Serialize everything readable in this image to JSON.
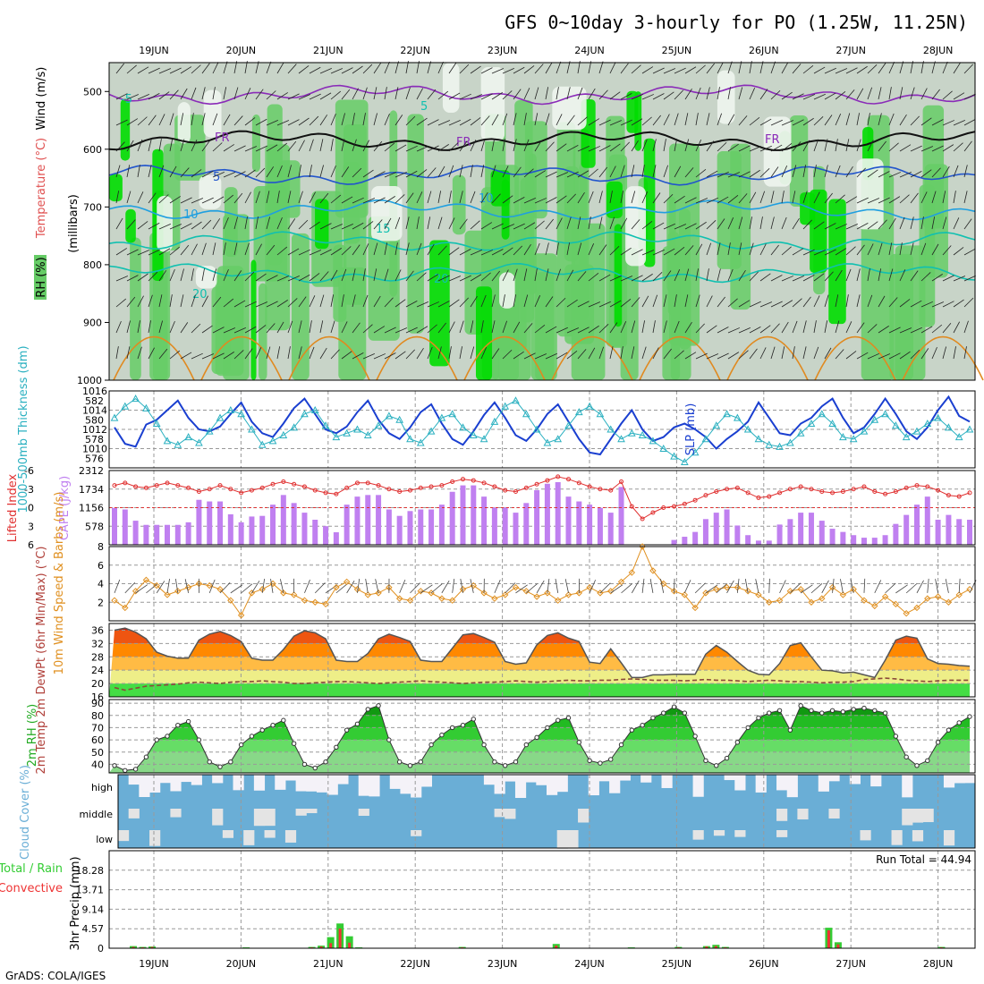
{
  "page": {
    "title": "GFS 0~10day 3-hourly for PO (1.25W, 11.25N)",
    "credit": "GrADS: COLA/IGES",
    "run_total_text": "Run Total = 44.94"
  },
  "colors": {
    "rh_dark": "#00dd00",
    "rh_mid": "#66cc66",
    "rh_light": "#c8d4c8",
    "rh_white": "#eef5ee",
    "wind_purple": "#8a2bb8",
    "temp_blue": "#2255cc",
    "temp_light": "#1f9fe0",
    "temp_teal": "#10c0b0",
    "temp_orange": "#e08a20",
    "temp_magenta": "#cc1c8c",
    "slp": "#1a3fd0",
    "thickness": "#2ab0c0",
    "lifted": "#e03030",
    "cape": "#c080f0",
    "wind10": "#e09020",
    "cloud": "#6aaed6",
    "rain": "#33cc33",
    "conv": "#ee3333"
  },
  "chart_data": [
    {
      "id": "upper_air",
      "type": "heatmap",
      "ylabel": "(millibars)",
      "side_labels": [
        "RH (%)",
        "Temperature (°C)",
        "Wind (m/s)"
      ],
      "ylim": [
        1000,
        450
      ],
      "yticks": [
        500,
        600,
        700,
        800,
        900,
        1000
      ],
      "xticks": [
        "19JUN",
        "20JUN",
        "21JUN",
        "22JUN",
        "23JUN",
        "24JUN",
        "25JUN",
        "26JUN",
        "27JUN",
        "28JUN"
      ],
      "isotherms": [
        {
          "label": "5",
          "values": [
            -5,
            505
          ]
        },
        {
          "label": "FR",
          "values": [
            0,
            585
          ]
        },
        {
          "label": "5",
          "values": [
            5,
            645
          ]
        },
        {
          "label": "10",
          "values": [
            10,
            705
          ]
        },
        {
          "label": "15",
          "values": [
            15,
            760
          ]
        },
        {
          "label": "20",
          "values": [
            20,
            815
          ]
        }
      ],
      "isotherm_labels": [
        "-5",
        "5",
        "FR",
        "FR",
        "FR",
        "5",
        "10",
        "10",
        "15",
        "20",
        "20",
        "20"
      ]
    },
    {
      "id": "slp_thickness",
      "type": "line",
      "ylabel_left": "1000-500mb Thickness (dm)",
      "ylabel_right": "SLP (mb)",
      "yticks_left": [
        576,
        578,
        580,
        582
      ],
      "yticks_right": [
        1010,
        1012,
        1014,
        1016
      ],
      "ylim_left": [
        575,
        583
      ],
      "ylim_right": [
        1008,
        1016
      ],
      "series": [
        {
          "name": "SLP",
          "axis": "right",
          "values": [
            1012.2,
            1010.5,
            1010.2,
            1012.5,
            1013.0,
            1014.0,
            1015.0,
            1013.2,
            1012.0,
            1011.8,
            1012.3,
            1013.6,
            1014.8,
            1012.8,
            1011.6,
            1011.2,
            1012.6,
            1014.2,
            1015.2,
            1013.6,
            1012.0,
            1011.6,
            1012.3,
            1013.8,
            1015.0,
            1013.0,
            1011.6,
            1011.0,
            1012.2,
            1013.8,
            1014.6,
            1012.6,
            1011.0,
            1010.4,
            1011.8,
            1013.5,
            1014.8,
            1013.2,
            1011.4,
            1010.8,
            1012.0,
            1013.6,
            1014.6,
            1012.8,
            1011.0,
            1009.6,
            1009.4,
            1011.0,
            1012.6,
            1014.0,
            1012.0,
            1010.8,
            1011.2,
            1012.2,
            1012.6,
            1012.0,
            1011.2,
            1010.0,
            1011.0,
            1011.8,
            1012.8,
            1014.8,
            1013.2,
            1011.6,
            1011.4,
            1012.6,
            1013.2,
            1014.4,
            1015.2,
            1013.2,
            1011.6,
            1012.2,
            1013.6,
            1015.2,
            1013.6,
            1011.8,
            1011.0,
            1012.2,
            1014.0,
            1015.4,
            1013.4,
            1012.8
          ]
        },
        {
          "name": "Thickness",
          "axis": "left",
          "values": [
            580.2,
            581.4,
            582.2,
            581.2,
            579.6,
            577.8,
            577.4,
            578.2,
            577.6,
            578.8,
            580.2,
            581.0,
            580.6,
            579.0,
            577.4,
            577.8,
            578.4,
            579.2,
            580.6,
            581.0,
            579.4,
            578.2,
            578.6,
            579.0,
            578.4,
            579.4,
            580.4,
            580.0,
            578.0,
            577.6,
            578.8,
            580.2,
            580.6,
            579.2,
            578.4,
            578.0,
            579.8,
            581.4,
            582.0,
            580.6,
            579.0,
            577.6,
            578.0,
            579.4,
            580.8,
            581.4,
            580.6,
            579.0,
            578.0,
            578.6,
            578.4,
            577.8,
            577.0,
            576.2,
            575.6,
            576.6,
            578.0,
            579.4,
            580.6,
            580.2,
            579.0,
            578.0,
            577.4,
            577.2,
            577.6,
            578.6,
            579.6,
            580.6,
            579.6,
            578.2,
            578.0,
            578.8,
            580.0,
            580.6,
            579.4,
            578.2,
            578.8,
            579.6,
            580.2,
            579.2,
            578.2,
            579.0
          ]
        }
      ]
    },
    {
      "id": "cape_li",
      "type": "bar",
      "ylabel_left": "Lifted Index",
      "ylabel_right": "CAPE (J/kg)",
      "yticks_left": [
        -6,
        -3,
        0,
        3,
        6
      ],
      "yticks_right": [
        578,
        1156,
        1734,
        2312
      ],
      "ylim_left": [
        6,
        -6
      ],
      "ylim_right": [
        0,
        2312
      ],
      "series": [
        {
          "name": "CAPE",
          "axis": "right",
          "values": [
            1150,
            1100,
            750,
            620,
            620,
            620,
            620,
            700,
            1400,
            1350,
            1350,
            950,
            700,
            880,
            900,
            1250,
            1550,
            1300,
            1000,
            780,
            580,
            390,
            1250,
            1500,
            1550,
            1550,
            1100,
            900,
            1050,
            1100,
            1100,
            1250,
            1650,
            1850,
            1850,
            1500,
            1160,
            1160,
            1000,
            1300,
            1700,
            1900,
            1950,
            1500,
            1350,
            1250,
            1150,
            1000,
            1800,
            0,
            0,
            0,
            0,
            150,
            250,
            400,
            800,
            1000,
            1100,
            600,
            300,
            130,
            130,
            630,
            800,
            1000,
            1000,
            750,
            500,
            400,
            300,
            220,
            220,
            300,
            650,
            930,
            1250,
            1500,
            780,
            930,
            800,
            780
          ]
        },
        {
          "name": "Lifted Index",
          "axis": "left",
          "values": [
            -3.6,
            -4.0,
            -3.4,
            -3.2,
            -3.6,
            -4.0,
            -3.6,
            -3.2,
            -2.6,
            -3.0,
            -3.6,
            -3.0,
            -2.4,
            -2.8,
            -3.2,
            -3.8,
            -4.2,
            -3.8,
            -3.4,
            -2.8,
            -2.4,
            -2.2,
            -3.2,
            -4.0,
            -4.0,
            -3.6,
            -3.0,
            -2.6,
            -2.8,
            -3.2,
            -3.4,
            -3.6,
            -4.2,
            -4.6,
            -4.4,
            -4.0,
            -3.4,
            -2.8,
            -2.6,
            -3.2,
            -3.8,
            -4.4,
            -5.0,
            -4.6,
            -4.0,
            -3.4,
            -3.0,
            -2.8,
            -4.2,
            -0.2,
            1.8,
            0.8,
            0.0,
            -0.2,
            -0.6,
            -1.2,
            -2.0,
            -2.6,
            -3.0,
            -3.2,
            -2.4,
            -1.6,
            -1.8,
            -2.4,
            -3.0,
            -3.4,
            -3.0,
            -2.6,
            -2.4,
            -2.6,
            -3.0,
            -3.4,
            -2.6,
            -2.2,
            -2.6,
            -3.2,
            -3.6,
            -3.4,
            -2.8,
            -2.0,
            -1.8,
            -2.4
          ]
        }
      ]
    },
    {
      "id": "wind10",
      "type": "line",
      "ylabel": "10m Wind Speed & Barbs (m/s)",
      "yticks": [
        2,
        4,
        6,
        8
      ],
      "ylim": [
        0,
        8
      ],
      "series": [
        {
          "name": "10m Wind Speed",
          "values": [
            2.2,
            1.4,
            3.2,
            4.4,
            3.8,
            2.8,
            3.2,
            3.6,
            4.0,
            3.8,
            3.4,
            2.2,
            0.6,
            3.0,
            3.4,
            4.0,
            3.0,
            2.8,
            2.2,
            2.0,
            1.8,
            3.6,
            4.2,
            3.4,
            2.8,
            3.0,
            3.6,
            2.4,
            2.2,
            3.2,
            3.0,
            2.4,
            2.2,
            3.4,
            3.8,
            3.0,
            2.4,
            2.8,
            3.6,
            3.2,
            2.6,
            3.0,
            2.2,
            2.8,
            3.0,
            3.6,
            3.0,
            3.2,
            4.2,
            5.2,
            8.0,
            5.4,
            4.0,
            3.2,
            2.8,
            1.4,
            3.0,
            3.4,
            3.6,
            3.6,
            3.2,
            2.8,
            2.0,
            2.2,
            3.2,
            3.4,
            2.0,
            2.4,
            3.6,
            2.8,
            3.4,
            2.2,
            1.6,
            2.6,
            1.8,
            0.8,
            1.4,
            2.4,
            2.6,
            2.0,
            2.8,
            3.4
          ]
        }
      ]
    },
    {
      "id": "temp2m",
      "type": "area",
      "ylabel": "2m Temp 2m DewPt (6hr Min/Max) (°C)",
      "yticks": [
        16,
        20,
        24,
        28,
        32,
        36
      ],
      "ylim": [
        16,
        38
      ],
      "series": [
        {
          "name": "2m Temp",
          "values": [
            36,
            36.6,
            35.4,
            33.4,
            29.4,
            28.2,
            27.6,
            27.6,
            33.0,
            34.8,
            35.6,
            34.4,
            32.6,
            27.6,
            27.0,
            27.0,
            30.2,
            34.2,
            35.8,
            35.2,
            33.4,
            27.0,
            26.6,
            26.6,
            29.0,
            33.4,
            34.8,
            33.8,
            32.6,
            27.0,
            26.6,
            26.6,
            30.6,
            34.6,
            35.0,
            33.8,
            32.4,
            26.6,
            25.8,
            26.2,
            31.6,
            34.4,
            35.2,
            33.6,
            32.6,
            26.4,
            26.0,
            30.4,
            26.2,
            21.8,
            21.8,
            22.6,
            22.6,
            22.8,
            22.8,
            22.8,
            28.8,
            31.4,
            29.4,
            26.6,
            24.0,
            22.8,
            22.6,
            26.0,
            31.4,
            32.2,
            28.0,
            24.0,
            23.8,
            23.2,
            23.4,
            22.6,
            21.8,
            27.0,
            33.0,
            34.2,
            33.6,
            27.4,
            26.0,
            25.8,
            25.4,
            25.2
          ]
        },
        {
          "name": "2m DewPt",
          "values": [
            18.8,
            18.0,
            18.6,
            19.2,
            19.4,
            19.6,
            19.8,
            20.2,
            20.4,
            20.2,
            20.0,
            20.4,
            20.6,
            20.6,
            20.8,
            20.6,
            20.4,
            20.0,
            20.0,
            20.2,
            20.4,
            20.6,
            20.6,
            20.4,
            20.2,
            20.0,
            20.2,
            20.4,
            20.6,
            20.8,
            20.6,
            20.4,
            20.2,
            20.0,
            20.2,
            20.4,
            20.4,
            20.6,
            20.8,
            20.6,
            20.4,
            20.6,
            20.8,
            21.0,
            20.8,
            20.8,
            21.0,
            21.0,
            21.2,
            21.4,
            21.2,
            21.0,
            21.0,
            21.0,
            20.8,
            21.0,
            21.2,
            21.0,
            21.0,
            20.8,
            20.6,
            20.8,
            21.0,
            20.8,
            20.6,
            20.6,
            20.4,
            20.2,
            20.4,
            20.4,
            20.6,
            21.2,
            21.4,
            21.6,
            21.4,
            21.0,
            20.8,
            20.6,
            20.8,
            21.0,
            21.0,
            21.0
          ]
        }
      ]
    },
    {
      "id": "rh2m",
      "type": "area",
      "ylabel": "2m RH (%)",
      "yticks": [
        40,
        50,
        60,
        70,
        80,
        90
      ],
      "ylim": [
        33,
        93
      ],
      "series": [
        {
          "name": "2m RH",
          "values": [
            39,
            35,
            36,
            46,
            60,
            63,
            72,
            75,
            60,
            42,
            38,
            42,
            56,
            63,
            68,
            72,
            76,
            57,
            40,
            37,
            42,
            54,
            68,
            73,
            85,
            88,
            60,
            42,
            39,
            42,
            56,
            64,
            70,
            72,
            77,
            56,
            42,
            39,
            42,
            56,
            62,
            70,
            76,
            78,
            58,
            43,
            41,
            44,
            56,
            68,
            72,
            78,
            82,
            87,
            82,
            63,
            43,
            39,
            45,
            58,
            70,
            78,
            82,
            84,
            68,
            88,
            84,
            82,
            84,
            83,
            85,
            86,
            84,
            82,
            63,
            46,
            39,
            43,
            58,
            68,
            74,
            79
          ]
        }
      ]
    },
    {
      "id": "cloud",
      "type": "heatmap",
      "ylabel": "Cloud Cover (%)",
      "rows": [
        "high",
        "middle",
        "low"
      ]
    },
    {
      "id": "precip",
      "type": "bar",
      "ylabel": "3hr Precip (mm)",
      "side_label_left": [
        "Total / Rain",
        "Convective"
      ],
      "yticks": [
        0,
        4.57,
        9.14,
        13.71,
        18.28
      ],
      "ylim": [
        0,
        22.85
      ],
      "series": [
        {
          "name": "Total / Rain",
          "values": [
            0,
            0,
            0.5,
            0.3,
            0.4,
            0,
            0,
            0,
            0,
            0,
            0,
            0,
            0,
            0,
            0.2,
            0,
            0,
            0,
            0,
            0,
            0,
            0.3,
            0.6,
            2.6,
            5.8,
            2.8,
            0.2,
            0,
            0,
            0,
            0,
            0,
            0,
            0,
            0,
            0,
            0,
            0.3,
            0,
            0,
            0,
            0,
            0,
            0,
            0,
            0,
            0,
            1.0,
            0.1,
            0,
            0,
            0,
            0,
            0,
            0,
            0.2,
            0,
            0,
            0,
            0,
            0.3,
            0,
            0,
            0.5,
            0.8,
            0.3,
            0,
            0,
            0,
            0,
            0,
            0,
            0,
            0,
            0,
            0,
            4.8,
            1.4,
            0,
            0,
            0,
            0,
            0,
            0,
            0,
            0,
            0,
            0,
            0.3,
            0,
            0,
            0
          ]
        },
        {
          "name": "Convective",
          "values": [
            0,
            0,
            0.3,
            0.2,
            0.3,
            0,
            0,
            0,
            0,
            0,
            0,
            0,
            0,
            0,
            0.1,
            0,
            0,
            0,
            0,
            0,
            0,
            0.2,
            0.4,
            1.2,
            4.6,
            1.3,
            0.1,
            0,
            0,
            0,
            0,
            0,
            0,
            0,
            0,
            0,
            0,
            0.2,
            0,
            0,
            0,
            0,
            0,
            0,
            0,
            0,
            0,
            0.6,
            0,
            0,
            0,
            0,
            0,
            0,
            0,
            0.1,
            0,
            0,
            0,
            0,
            0.2,
            0,
            0,
            0.4,
            0.5,
            0.2,
            0,
            0,
            0,
            0,
            0,
            0,
            0,
            0,
            0,
            0,
            4.2,
            0.9,
            0,
            0,
            0,
            0,
            0,
            0,
            0,
            0,
            0,
            0,
            0.2,
            0,
            0,
            0
          ]
        }
      ]
    }
  ]
}
